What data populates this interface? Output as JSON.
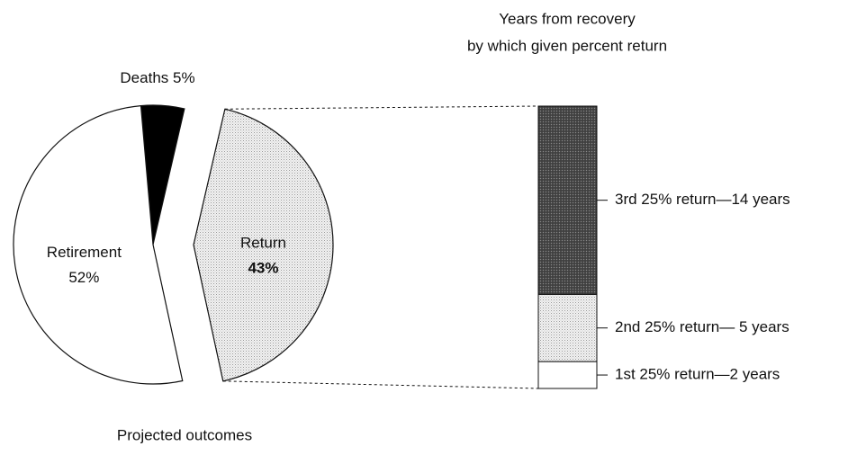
{
  "chart_data": [
    {
      "type": "pie",
      "caption": "Projected outcomes",
      "categories": [
        "Deaths",
        "Return",
        "Retirement"
      ],
      "values": [
        5,
        43,
        52
      ],
      "value_labels": [
        "5%",
        "43%",
        "52%"
      ],
      "colors": [
        "#000000",
        "pattern-light",
        "#ffffff"
      ],
      "exploded": "Return"
    },
    {
      "type": "stacked-bar",
      "title": [
        "Years from recovery",
        "by which given percent return"
      ],
      "labels": [
        "1st 25% return—2 years",
        "2nd 25% return— 5 years",
        "3rd 25% return—14 years"
      ],
      "values": [
        2,
        5,
        14
      ],
      "colors": [
        "#ffffff",
        "pattern-light",
        "pattern-dark"
      ]
    }
  ]
}
